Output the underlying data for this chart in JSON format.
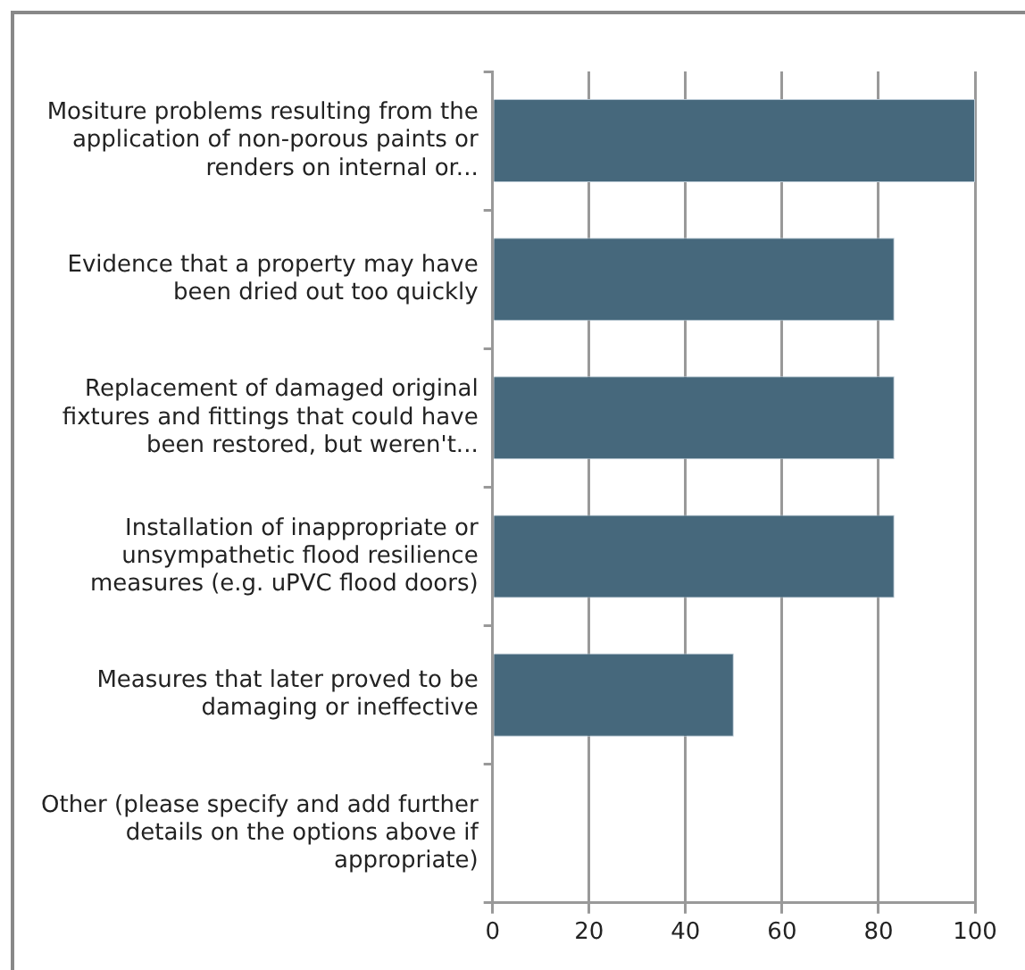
{
  "chart_data": {
    "type": "bar",
    "orientation": "horizontal",
    "categories": [
      "Mositure problems resulting from the application of non-porous paints or renders on internal or...",
      "Evidence that a property may have been dried out too quickly",
      "Replacement of damaged original fixtures and fittings that could have been restored, but weren't...",
      "Installation of inappropriate or unsympathetic flood resilience measures (e.g. uPVC flood doors)",
      "Measures that later proved to be damaging or ineffective",
      "Other (please specify and add further details on the options above if appropriate)"
    ],
    "values": [
      100,
      83.3,
      83.3,
      83.3,
      50,
      0
    ],
    "color": "#46687c",
    "xlim": [
      0,
      100
    ],
    "xticks": [
      0,
      20,
      40,
      60,
      80,
      100
    ],
    "grid": "x",
    "legend": false
  }
}
